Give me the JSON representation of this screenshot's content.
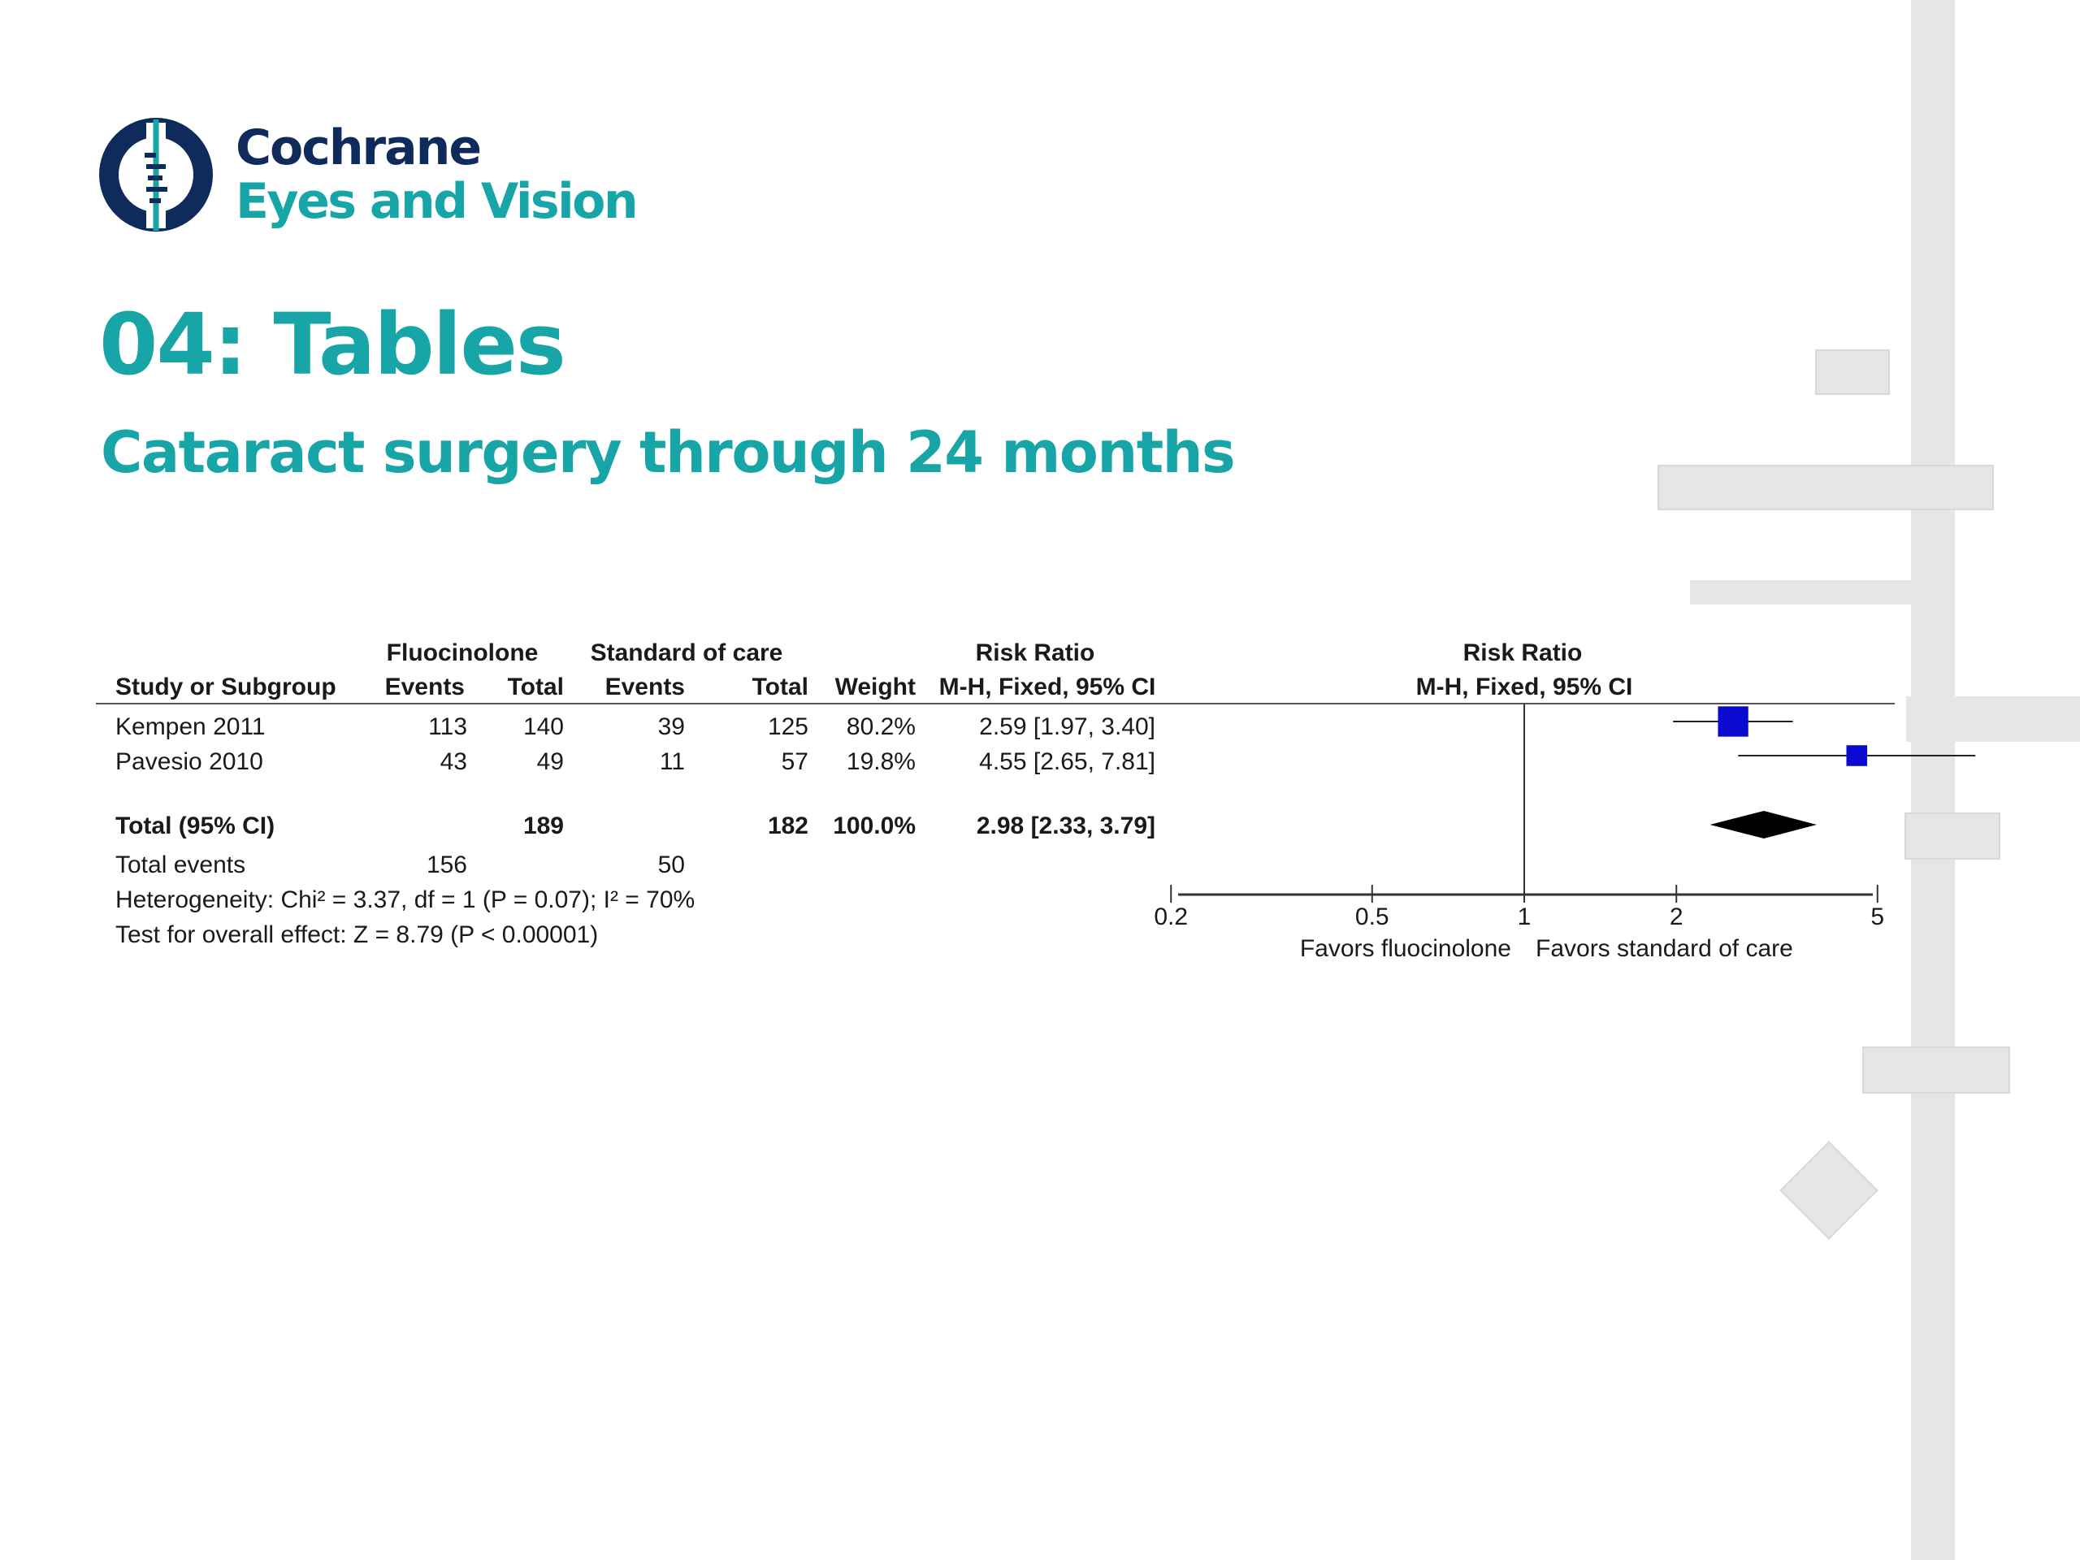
{
  "logo": {
    "line1": "Cochrane",
    "line2": "Eyes and Vision",
    "icon": "cochrane-logo-icon",
    "colors": {
      "navy": "#0f2b5b",
      "teal": "#18a5a7"
    }
  },
  "page": {
    "title": "04: Tables",
    "subtitle": "Cataract surgery through 24 months",
    "accent_color": "#18a5a7"
  },
  "chart_data": {
    "type": "table",
    "header": {
      "group1": "Fluocinolone",
      "group2": "Standard of care",
      "rr_col": "Risk Ratio",
      "rr_col_sub": "M-H, Fixed, 95% CI",
      "plot_title": "Risk Ratio",
      "plot_sub": "M-H, Fixed, 95% CI",
      "study": "Study or Subgroup",
      "events1": "Events",
      "total1": "Total",
      "events2": "Events",
      "total2": "Total",
      "weight": "Weight"
    },
    "studies": [
      {
        "name": "Kempen 2011",
        "events1": "113",
        "total1": "140",
        "events2": "39",
        "total2": "125",
        "weight": "80.2%",
        "ci_text": "2.59 [1.97, 3.40]",
        "rr": 2.59,
        "lo": 1.97,
        "hi": 3.4,
        "weight_value": 80.2
      },
      {
        "name": "Pavesio 2010",
        "events1": "43",
        "total1": "49",
        "events2": "11",
        "total2": "57",
        "weight": "19.8%",
        "ci_text": "4.55 [2.65, 7.81]",
        "rr": 4.55,
        "lo": 2.65,
        "hi": 7.81,
        "weight_value": 19.8
      }
    ],
    "total": {
      "label": "Total (95% CI)",
      "total1": "189",
      "total2": "182",
      "weight": "100.0%",
      "ci_text": "2.98 [2.33, 3.79]",
      "rr": 2.98,
      "lo": 2.33,
      "hi": 3.79
    },
    "total_events": {
      "label": "Total events",
      "events1": "156",
      "events2": "50"
    },
    "heterogeneity": "Heterogeneity: Chi² = 3.37, df = 1 (P = 0.07); I² = 70%",
    "overall_effect": "Test for overall effect: Z = 8.79 (P < 0.00001)",
    "axis": {
      "scale": "log",
      "ticks": [
        "0.2",
        "0.5",
        "1",
        "2",
        "5"
      ],
      "tick_values": [
        0.2,
        0.5,
        1,
        2,
        5
      ],
      "left_label": "Favors fluocinolone",
      "right_label": "Favors standard of care"
    },
    "colors": {
      "study_marker": "#0a0ad0",
      "summary": "#000000"
    }
  }
}
